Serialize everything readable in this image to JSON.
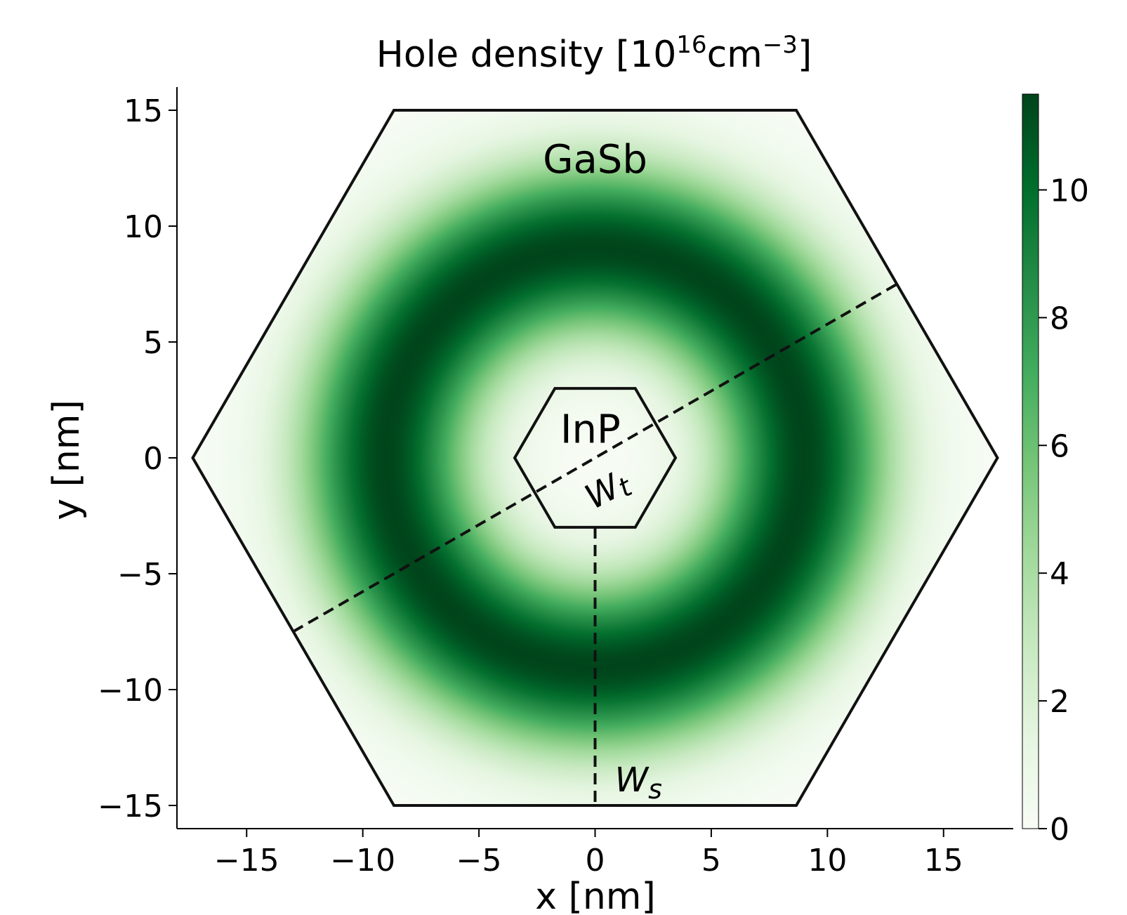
{
  "chart_data": {
    "type": "heatmap",
    "title": {
      "main": "Hole density [10",
      "exp1": "16",
      "mid": "cm",
      "exp2": "−3",
      "end": "]"
    },
    "xlabel": "x [nm]",
    "ylabel": "y [nm]",
    "xlim": [
      -18,
      18
    ],
    "ylim": [
      -16,
      16
    ],
    "x_ticks": [
      {
        "value": -15,
        "label": "−15"
      },
      {
        "value": -10,
        "label": "−10"
      },
      {
        "value": -5,
        "label": "−5"
      },
      {
        "value": 0,
        "label": "0"
      },
      {
        "value": 5,
        "label": "5"
      },
      {
        "value": 10,
        "label": "10"
      },
      {
        "value": 15,
        "label": "15"
      }
    ],
    "y_ticks": [
      {
        "value": 15,
        "label": "15"
      },
      {
        "value": 10,
        "label": "10"
      },
      {
        "value": 5,
        "label": "5"
      },
      {
        "value": 0,
        "label": "0"
      },
      {
        "value": -5,
        "label": "−5"
      },
      {
        "value": -10,
        "label": "−10"
      },
      {
        "value": -15,
        "label": "−15"
      }
    ],
    "colorbar": {
      "min": 0,
      "max": 11.5,
      "colormap": "Greens",
      "colors": [
        "#f7fcf5",
        "#e5f5e0",
        "#c7e9c0",
        "#a1d99b",
        "#74c476",
        "#41ab5d",
        "#238b45",
        "#006d2c",
        "#00441b"
      ],
      "ticks": [
        {
          "value": 0,
          "label": "0"
        },
        {
          "value": 2,
          "label": "2"
        },
        {
          "value": 4,
          "label": "4"
        },
        {
          "value": 6,
          "label": "6"
        },
        {
          "value": 8,
          "label": "8"
        },
        {
          "value": 10,
          "label": "10"
        }
      ]
    },
    "density_ring": {
      "peak_value": 11.5,
      "peak_radius_nm": 9.0,
      "ring_sigma_nm": 2.6
    },
    "outer_hexagon": {
      "label": "GaSb",
      "circumradius_nm": 17.32
    },
    "inner_hexagon": {
      "label": "InP",
      "circumradius_nm": 3.46
    },
    "cut_lines": [
      {
        "label_main": "W",
        "label_sub": "t",
        "from": [
          -13.0,
          -7.5
        ],
        "to": [
          13.0,
          7.5
        ]
      },
      {
        "label_main": "W",
        "label_sub": "s",
        "from": [
          0,
          -3.0
        ],
        "to": [
          0,
          -15.0
        ]
      }
    ]
  }
}
